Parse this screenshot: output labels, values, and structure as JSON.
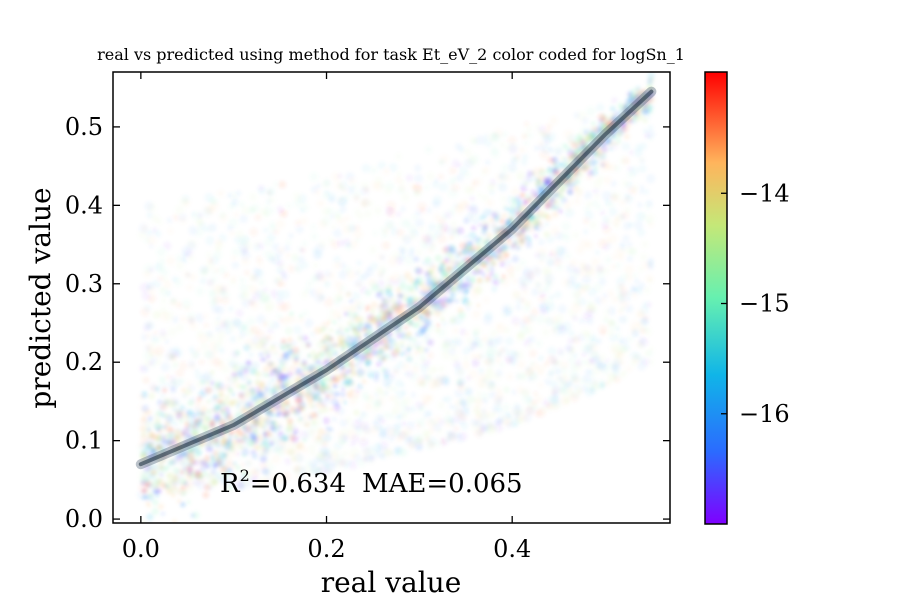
{
  "chart_data": {
    "type": "scatter",
    "title": "real vs predicted  using method  for task Et_eV_2 color coded for logSn_1",
    "xlabel": "real value",
    "ylabel": "predicted value",
    "xlim": [
      -0.03,
      0.57
    ],
    "ylim": [
      -0.005,
      0.57
    ],
    "xticks": [
      0.0,
      0.2,
      0.4
    ],
    "xtick_labels": [
      "0.0",
      "0.2",
      "0.4"
    ],
    "yticks": [
      0.0,
      0.1,
      0.2,
      0.3,
      0.4,
      0.5
    ],
    "ytick_labels": [
      "0.0",
      "0.1",
      "0.2",
      "0.3",
      "0.4",
      "0.5"
    ],
    "grid": false,
    "annotation": {
      "r2_prefix": "R",
      "r2_superscript": "2",
      "r2_value": "=0.634",
      "mae": "MAE=0.065"
    },
    "trend": {
      "x": [
        0.0,
        0.1,
        0.2,
        0.3,
        0.4,
        0.5,
        0.55
      ],
      "y": [
        0.07,
        0.12,
        0.19,
        0.27,
        0.37,
        0.49,
        0.545
      ]
    },
    "spread": {
      "x": [
        0.0,
        0.1,
        0.2,
        0.3,
        0.4,
        0.5,
        0.55
      ],
      "y_min": [
        0.03,
        0.04,
        0.06,
        0.09,
        0.12,
        0.17,
        0.2
      ],
      "y_max": [
        0.4,
        0.42,
        0.44,
        0.47,
        0.5,
        0.53,
        0.55
      ]
    },
    "colorbar": {
      "label": "logSn_1",
      "range": [
        -17.0,
        -12.9
      ],
      "ticks": [
        -14,
        -15,
        -16
      ],
      "tick_labels": [
        "−14",
        "−15",
        "−16"
      ],
      "colormap": "rainbow"
    }
  }
}
